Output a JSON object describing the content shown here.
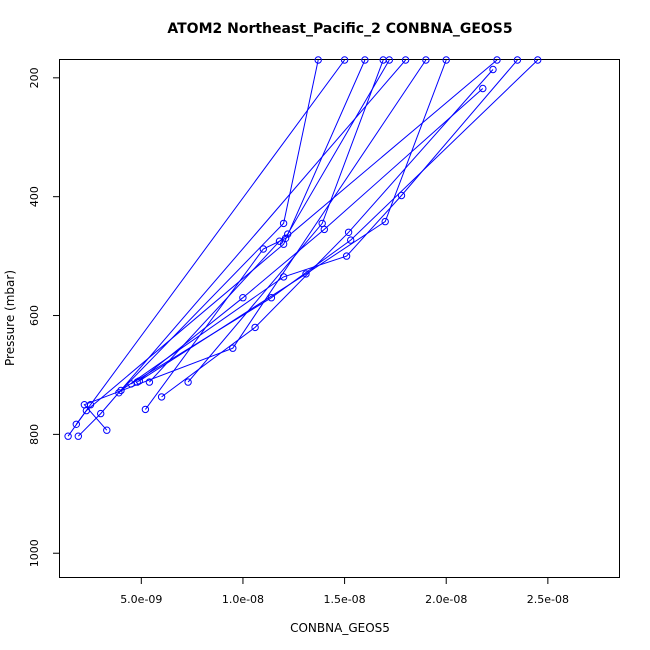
{
  "chart_data": {
    "type": "line",
    "title": "ATOM2 Northeast_Pacific_2 CONBNA_GEOS5",
    "xlabel": "CONBNA_GEOS5",
    "ylabel": "Pressure (mbar)",
    "xlim": [
      1e-09,
      2.85e-08
    ],
    "ylim": [
      1040,
      170
    ],
    "y_reversed": true,
    "grid": false,
    "color": "#0000ff",
    "x_ticks": [
      {
        "value": 5e-09,
        "label": "5.0e-09"
      },
      {
        "value": 1e-08,
        "label": "1.0e-08"
      },
      {
        "value": 1.5e-08,
        "label": "1.5e-08"
      },
      {
        "value": 2e-08,
        "label": "2.0e-08"
      },
      {
        "value": 2.5e-08,
        "label": "2.5e-08"
      }
    ],
    "y_ticks": [
      {
        "value": 200,
        "label": "200"
      },
      {
        "value": 400,
        "label": "400"
      },
      {
        "value": 600,
        "label": "600"
      },
      {
        "value": 800,
        "label": "800"
      },
      {
        "value": 1000,
        "label": "1000"
      }
    ],
    "series": [
      {
        "points": [
          [
            1.4e-09,
            803
          ],
          [
            2.5e-09,
            750
          ],
          [
            1.5e-08,
            170
          ]
        ]
      },
      {
        "points": [
          [
            1.9e-09,
            803
          ],
          [
            3e-09,
            765
          ],
          [
            1.8e-08,
            170
          ]
        ]
      },
      {
        "points": [
          [
            1.8e-09,
            783
          ],
          [
            2.3e-09,
            760
          ],
          [
            1.2e-08,
            480
          ],
          [
            1.6e-08,
            170
          ]
        ]
      },
      {
        "points": [
          [
            3.3e-09,
            793
          ],
          [
            2.2e-09,
            750
          ],
          [
            9.5e-09,
            655
          ],
          [
            1.9e-08,
            170
          ]
        ]
      },
      {
        "points": [
          [
            3.9e-09,
            730
          ],
          [
            1.2e-08,
            445
          ],
          [
            1.37e-08,
            170
          ]
        ]
      },
      {
        "points": [
          [
            4.8e-09,
            712
          ],
          [
            1e-08,
            570
          ],
          [
            1.4e-08,
            455
          ],
          [
            2.18e-08,
            218
          ]
        ]
      },
      {
        "points": [
          [
            5.4e-09,
            712
          ],
          [
            1.18e-08,
            475
          ],
          [
            1.22e-08,
            463
          ],
          [
            1.72e-08,
            170
          ]
        ]
      },
      {
        "points": [
          [
            5.2e-09,
            758
          ],
          [
            1.1e-08,
            488
          ],
          [
            1.21e-08,
            470
          ],
          [
            2.25e-08,
            170
          ]
        ]
      },
      {
        "points": [
          [
            6e-09,
            737
          ],
          [
            1.06e-08,
            620
          ],
          [
            1.52e-08,
            460
          ],
          [
            2.23e-08,
            186
          ]
        ]
      },
      {
        "points": [
          [
            7.3e-09,
            712
          ],
          [
            1.39e-08,
            445
          ],
          [
            1.69e-08,
            170
          ]
        ]
      },
      {
        "points": [
          [
            4.5e-09,
            715
          ],
          [
            1.14e-08,
            570
          ],
          [
            1.53e-08,
            473
          ],
          [
            2.45e-08,
            170
          ]
        ]
      },
      {
        "points": [
          [
            4.9e-09,
            710
          ],
          [
            1.31e-08,
            530
          ],
          [
            1.7e-08,
            442
          ],
          [
            2e-08,
            170
          ]
        ]
      },
      {
        "points": [
          [
            4e-09,
            726
          ],
          [
            1.2e-08,
            535
          ],
          [
            1.51e-08,
            500
          ],
          [
            1.78e-08,
            398
          ],
          [
            2.35e-08,
            170
          ]
        ]
      }
    ]
  }
}
